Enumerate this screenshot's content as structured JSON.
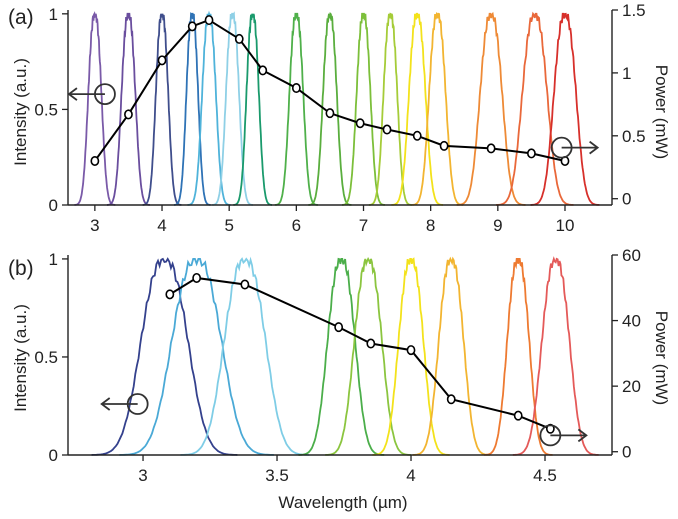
{
  "chart_data": [
    {
      "type": "line",
      "panel_label": "(a)",
      "xlabel": "",
      "ylabel": "Intensity (a.u.)",
      "y2label": "Power (mW)",
      "xlim": [
        2.6,
        10.7
      ],
      "ylim": [
        0,
        1.02
      ],
      "y2lim": [
        -0.05,
        1.5
      ],
      "x_ticks": [
        3,
        4,
        5,
        6,
        7,
        8,
        9,
        10
      ],
      "y_ticks": [
        0,
        0.5,
        1
      ],
      "y_tick_labels": [
        "0",
        "0.5",
        "1"
      ],
      "y2_ticks": [
        0,
        0.5,
        1,
        1.5
      ],
      "y2_tick_labels": [
        "0",
        "0.5",
        "1",
        "1.5"
      ],
      "grid": false,
      "spectra": [
        {
          "center": 3.0,
          "width": 0.095,
          "color": "#7a5aa8"
        },
        {
          "center": 3.5,
          "width": 0.1,
          "color": "#6a4e9e"
        },
        {
          "center": 4.0,
          "width": 0.09,
          "color": "#3f4e8c"
        },
        {
          "center": 4.45,
          "width": 0.085,
          "color": "#2f73b6"
        },
        {
          "center": 4.7,
          "width": 0.1,
          "color": "#4fb3da"
        },
        {
          "center": 5.05,
          "width": 0.095,
          "color": "#8fd0e6"
        },
        {
          "center": 5.35,
          "width": 0.09,
          "color": "#1a9a6c"
        },
        {
          "center": 6.0,
          "width": 0.1,
          "color": "#4fb04a"
        },
        {
          "center": 6.5,
          "width": 0.1,
          "color": "#5aae3e"
        },
        {
          "center": 7.0,
          "width": 0.1,
          "color": "#7cbf3a"
        },
        {
          "center": 7.4,
          "width": 0.1,
          "color": "#a5cc38"
        },
        {
          "center": 7.8,
          "width": 0.12,
          "color": "#f3e21b"
        },
        {
          "center": 8.1,
          "width": 0.12,
          "color": "#f2b531"
        },
        {
          "center": 8.9,
          "width": 0.16,
          "color": "#ee8a36"
        },
        {
          "center": 9.55,
          "width": 0.18,
          "color": "#e9683a"
        },
        {
          "center": 10.0,
          "width": 0.16,
          "color": "#d7302b"
        }
      ],
      "series": [
        {
          "axis": "right",
          "x": [
            3.0,
            3.5,
            4.0,
            4.45,
            4.7,
            5.15,
            5.5,
            6.0,
            6.5,
            6.95,
            7.35,
            7.8,
            8.2,
            8.9,
            9.5,
            10.0
          ],
          "values": [
            0.3,
            0.67,
            1.1,
            1.37,
            1.42,
            1.27,
            1.02,
            0.88,
            0.68,
            0.6,
            0.55,
            0.5,
            0.42,
            0.4,
            0.36,
            0.3
          ]
        }
      ],
      "annotations": [
        {
          "type": "circle-arrow",
          "at": [
            3.15,
            0.58
          ],
          "points_to": "left-axis"
        },
        {
          "type": "circle-arrow",
          "at": [
            9.95,
            0.3
          ],
          "points_to": "right-axis"
        }
      ]
    },
    {
      "type": "line",
      "panel_label": "(b)",
      "xlabel": "Wavelength (µm)",
      "ylabel": "Intensity (a.u.)",
      "y2label": "Power (mW)",
      "xlim": [
        2.72,
        4.75
      ],
      "ylim": [
        0,
        1.02
      ],
      "y2lim": [
        -1,
        60
      ],
      "x_ticks": [
        3,
        3.5,
        4,
        4.5
      ],
      "x_tick_labels": [
        "3",
        "3.5",
        "4",
        "4.5"
      ],
      "y_ticks": [
        0,
        0.5,
        1
      ],
      "y_tick_labels": [
        "0",
        "0.5",
        "1"
      ],
      "y2_ticks": [
        0,
        20,
        40,
        60
      ],
      "y2_tick_labels": [
        "0",
        "20",
        "40",
        "60"
      ],
      "grid": false,
      "spectra": [
        {
          "center": 3.08,
          "width": 0.085,
          "color": "#34418d"
        },
        {
          "center": 3.2,
          "width": 0.09,
          "color": "#4aa9d6"
        },
        {
          "center": 3.38,
          "width": 0.075,
          "color": "#7fcde6"
        },
        {
          "center": 3.74,
          "width": 0.05,
          "color": "#4bae4a"
        },
        {
          "center": 3.84,
          "width": 0.05,
          "color": "#8bc53f"
        },
        {
          "center": 4.0,
          "width": 0.045,
          "color": "#f3e21b"
        },
        {
          "center": 4.15,
          "width": 0.045,
          "color": "#f2b531"
        },
        {
          "center": 4.4,
          "width": 0.04,
          "color": "#ee7a31"
        },
        {
          "center": 4.54,
          "width": 0.05,
          "color": "#e45a59"
        }
      ],
      "series": [
        {
          "axis": "right",
          "x": [
            3.1,
            3.2,
            3.38,
            3.73,
            3.85,
            4.0,
            4.15,
            4.4,
            4.52
          ],
          "values": [
            48,
            53,
            51,
            38,
            33,
            31,
            16,
            11,
            7
          ]
        }
      ],
      "annotations": [
        {
          "type": "circle-arrow",
          "at": [
            2.98,
            0.26
          ],
          "points_to": "left-axis"
        },
        {
          "type": "circle-arrow",
          "at": [
            4.52,
            0.1
          ],
          "points_to": "right-axis"
        }
      ]
    }
  ]
}
